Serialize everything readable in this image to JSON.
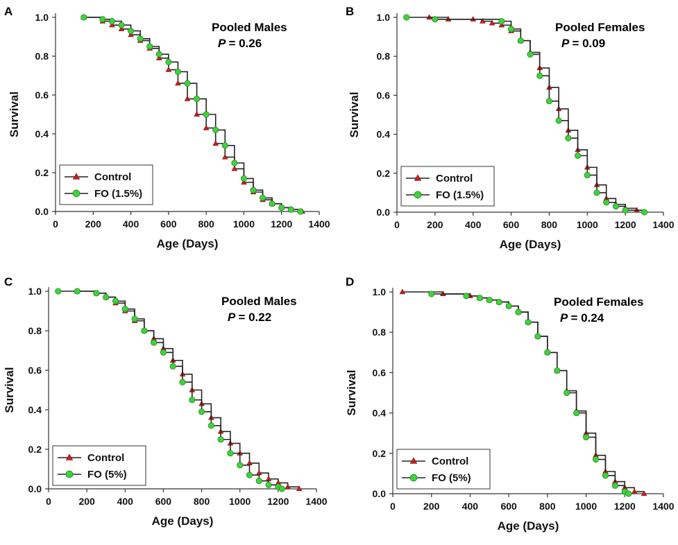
{
  "chart_data": [
    {
      "panel": "A",
      "type": "line",
      "annotation": "Pooled Males",
      "p_label": "P",
      "p_value": "= 0.26",
      "xlabel": "Age (Days)",
      "ylabel": "Survival",
      "xlim": [
        0,
        1400
      ],
      "ylim": [
        0,
        1.0
      ],
      "xticks": [
        0,
        200,
        400,
        600,
        800,
        1000,
        1200,
        1400
      ],
      "yticks": [
        "0.0",
        "0.2",
        "0.4",
        "0.6",
        "0.8",
        "1.0"
      ],
      "legend_position": "bottom-left",
      "series": [
        {
          "name": "Control",
          "marker": "triangle",
          "color": "#cc1f1f",
          "x": [
            150,
            250,
            300,
            350,
            400,
            450,
            500,
            550,
            600,
            650,
            700,
            750,
            800,
            850,
            900,
            950,
            1000,
            1050,
            1100,
            1150,
            1200,
            1250,
            1310
          ],
          "y": [
            1.0,
            0.98,
            0.96,
            0.94,
            0.91,
            0.88,
            0.84,
            0.79,
            0.73,
            0.66,
            0.58,
            0.5,
            0.43,
            0.35,
            0.28,
            0.22,
            0.15,
            0.1,
            0.06,
            0.04,
            0.02,
            0.01,
            0.0
          ]
        },
        {
          "name": "FO (1.5%)",
          "marker": "circle",
          "color": "#3fd23c",
          "x": [
            150,
            250,
            300,
            350,
            400,
            450,
            500,
            550,
            600,
            650,
            700,
            750,
            800,
            850,
            900,
            950,
            1000,
            1050,
            1100,
            1150,
            1200,
            1250,
            1300
          ],
          "y": [
            1.0,
            0.99,
            0.98,
            0.96,
            0.93,
            0.89,
            0.85,
            0.81,
            0.77,
            0.72,
            0.66,
            0.58,
            0.5,
            0.42,
            0.34,
            0.25,
            0.17,
            0.11,
            0.07,
            0.04,
            0.02,
            0.01,
            0.0
          ]
        }
      ]
    },
    {
      "panel": "B",
      "type": "line",
      "annotation": "Pooled Females",
      "p_label": "P",
      "p_value": "= 0.09",
      "xlabel": "Age (Days)",
      "ylabel": "Survival",
      "xlim": [
        0,
        1400
      ],
      "ylim": [
        0,
        1.0
      ],
      "xticks": [
        0,
        200,
        400,
        600,
        800,
        1000,
        1200,
        1400
      ],
      "yticks": [
        "0.0",
        "0.2",
        "0.4",
        "0.6",
        "0.8",
        "1.0"
      ],
      "legend_position": "bottom-left",
      "series": [
        {
          "name": "Control",
          "marker": "triangle",
          "color": "#cc1f1f",
          "x": [
            170,
            270,
            400,
            450,
            500,
            550,
            600,
            650,
            700,
            750,
            800,
            850,
            900,
            950,
            1000,
            1050,
            1100,
            1150,
            1200,
            1260
          ],
          "y": [
            1.0,
            0.99,
            0.99,
            0.98,
            0.97,
            0.96,
            0.93,
            0.88,
            0.82,
            0.74,
            0.64,
            0.53,
            0.42,
            0.32,
            0.23,
            0.14,
            0.07,
            0.04,
            0.02,
            0.01
          ]
        },
        {
          "name": "FO (1.5%)",
          "marker": "circle",
          "color": "#3fd23c",
          "x": [
            50,
            200,
            550,
            600,
            650,
            700,
            750,
            800,
            850,
            900,
            950,
            1000,
            1050,
            1100,
            1150,
            1200,
            1300
          ],
          "y": [
            1.0,
            0.99,
            0.98,
            0.94,
            0.88,
            0.81,
            0.7,
            0.57,
            0.47,
            0.38,
            0.29,
            0.19,
            0.1,
            0.05,
            0.03,
            0.01,
            0.0
          ]
        }
      ]
    },
    {
      "panel": "C",
      "type": "line",
      "annotation": "Pooled Males",
      "p_label": "P",
      "p_value": "= 0.22",
      "xlabel": "Age (Days)",
      "ylabel": "Survival",
      "xlim": [
        0,
        1400
      ],
      "ylim": [
        0,
        1.0
      ],
      "xticks": [
        0,
        200,
        400,
        600,
        800,
        1000,
        1200,
        1400
      ],
      "yticks": [
        "0.0",
        "0.2",
        "0.4",
        "0.6",
        "0.8",
        "1.0"
      ],
      "legend_position": "bottom-left",
      "series": [
        {
          "name": "Control",
          "marker": "triangle",
          "color": "#cc1f1f",
          "x": [
            150,
            250,
            300,
            350,
            400,
            450,
            500,
            550,
            600,
            650,
            700,
            750,
            800,
            850,
            900,
            950,
            1000,
            1050,
            1100,
            1150,
            1200,
            1250,
            1310
          ],
          "y": [
            1.0,
            0.99,
            0.97,
            0.94,
            0.9,
            0.85,
            0.8,
            0.76,
            0.71,
            0.65,
            0.58,
            0.5,
            0.43,
            0.36,
            0.29,
            0.23,
            0.18,
            0.13,
            0.08,
            0.05,
            0.03,
            0.01,
            0.0
          ]
        },
        {
          "name": "FO (5%)",
          "marker": "circle",
          "color": "#3fd23c",
          "x": [
            50,
            150,
            250,
            300,
            350,
            400,
            450,
            500,
            550,
            600,
            650,
            700,
            750,
            800,
            850,
            900,
            950,
            1000,
            1050,
            1100,
            1150,
            1200,
            1220
          ],
          "y": [
            1.0,
            1.0,
            0.99,
            0.97,
            0.95,
            0.91,
            0.86,
            0.8,
            0.74,
            0.69,
            0.62,
            0.54,
            0.45,
            0.39,
            0.32,
            0.25,
            0.18,
            0.12,
            0.07,
            0.04,
            0.02,
            0.01,
            0.0
          ]
        }
      ]
    },
    {
      "panel": "D",
      "type": "line",
      "annotation": "Pooled Females",
      "p_label": "P",
      "p_value": "= 0.24",
      "xlabel": "Age (Days)",
      "ylabel": "Survival",
      "xlim": [
        0,
        1400
      ],
      "ylim": [
        0,
        1.0
      ],
      "xticks": [
        0,
        200,
        400,
        600,
        800,
        1000,
        1200,
        1400
      ],
      "yticks": [
        "0.0",
        "0.2",
        "0.4",
        "0.6",
        "0.8",
        "1.0"
      ],
      "legend_position": "bottom-left",
      "series": [
        {
          "name": "Control",
          "marker": "triangle",
          "color": "#cc1f1f",
          "x": [
            50,
            260,
            400,
            450,
            500,
            550,
            600,
            650,
            700,
            750,
            800,
            850,
            900,
            950,
            1000,
            1050,
            1100,
            1150,
            1200,
            1250,
            1300
          ],
          "y": [
            1.0,
            0.99,
            0.98,
            0.97,
            0.96,
            0.95,
            0.93,
            0.9,
            0.85,
            0.78,
            0.7,
            0.61,
            0.51,
            0.41,
            0.3,
            0.19,
            0.11,
            0.06,
            0.03,
            0.01,
            0.0
          ]
        },
        {
          "name": "FO (5%)",
          "marker": "circle",
          "color": "#3fd23c",
          "x": [
            200,
            380,
            450,
            500,
            550,
            600,
            650,
            700,
            750,
            800,
            850,
            900,
            950,
            1000,
            1050,
            1100,
            1150,
            1200,
            1220
          ],
          "y": [
            0.99,
            0.98,
            0.97,
            0.96,
            0.95,
            0.93,
            0.9,
            0.85,
            0.78,
            0.7,
            0.61,
            0.5,
            0.4,
            0.28,
            0.17,
            0.09,
            0.04,
            0.01,
            0.0
          ]
        }
      ]
    }
  ]
}
